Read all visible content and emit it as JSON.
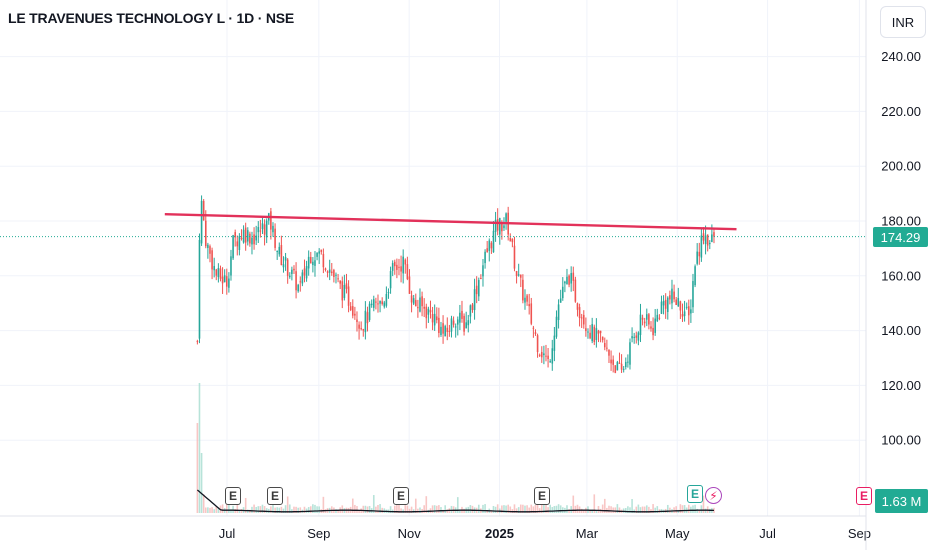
{
  "header": {
    "title": "LE TRAVENUES TECHNOLOGY L · 1D · NSE",
    "currency": "INR"
  },
  "price_label": "174.29",
  "volume_label": "1.63 M",
  "earnings_marker_text": "E",
  "colors": {
    "up": "#26a69a",
    "down": "#ef5350",
    "trendline": "#e2315a",
    "last_price": "#22ab94",
    "grid": "#f0f3fa"
  },
  "chart_data": {
    "type": "candlestick",
    "title": "LE TRAVENUES TECHNOLOGY L · 1D · NSE",
    "y_axis": {
      "ticks": [
        "240.00",
        "220.00",
        "200.00",
        "180.00",
        "160.00",
        "140.00",
        "120.00",
        "100.00"
      ],
      "range": [
        92,
        250
      ],
      "position": "right"
    },
    "x_axis": {
      "ticks": [
        "Jul",
        "Sep",
        "Nov",
        "2025",
        "Mar",
        "May",
        "Jul",
        "Sep"
      ],
      "bold_ticks": [
        "2025"
      ]
    },
    "last_price": 174.29,
    "trendline": {
      "start": [
        "2024-05-20",
        182.5
      ],
      "end": [
        "2025-06-10",
        177.0
      ]
    },
    "price_path": [
      [
        "2024-06-11",
        136
      ],
      [
        "2024-06-12",
        166
      ],
      [
        "2024-06-13",
        190
      ],
      [
        "2024-06-17",
        172
      ],
      [
        "2024-06-24",
        160
      ],
      [
        "2024-07-01",
        158
      ],
      [
        "2024-07-05",
        172
      ],
      [
        "2024-07-12",
        176
      ],
      [
        "2024-07-19",
        174
      ],
      [
        "2024-07-26",
        178
      ],
      [
        "2024-07-30",
        180
      ],
      [
        "2024-08-05",
        168
      ],
      [
        "2024-08-12",
        162
      ],
      [
        "2024-08-19",
        155
      ],
      [
        "2024-08-26",
        168
      ],
      [
        "2024-09-02",
        168
      ],
      [
        "2024-09-09",
        162
      ],
      [
        "2024-09-16",
        155
      ],
      [
        "2024-09-23",
        150
      ],
      [
        "2024-09-30",
        142
      ],
      [
        "2024-10-07",
        148
      ],
      [
        "2024-10-14",
        150
      ],
      [
        "2024-10-21",
        162
      ],
      [
        "2024-10-28",
        165
      ],
      [
        "2024-11-04",
        150
      ],
      [
        "2024-11-11",
        148
      ],
      [
        "2024-11-18",
        145
      ],
      [
        "2024-11-25",
        138
      ],
      [
        "2024-12-02",
        145
      ],
      [
        "2024-12-09",
        142
      ],
      [
        "2024-12-16",
        155
      ],
      [
        "2024-12-23",
        168
      ],
      [
        "2024-12-30",
        178
      ],
      [
        "2025-01-06",
        180
      ],
      [
        "2025-01-13",
        160
      ],
      [
        "2025-01-20",
        148
      ],
      [
        "2025-01-27",
        135
      ],
      [
        "2025-02-03",
        128
      ],
      [
        "2025-02-10",
        150
      ],
      [
        "2025-02-17",
        160
      ],
      [
        "2025-02-24",
        148
      ],
      [
        "2025-03-03",
        140
      ],
      [
        "2025-03-10",
        136
      ],
      [
        "2025-03-17",
        130
      ],
      [
        "2025-03-24",
        124
      ],
      [
        "2025-03-31",
        135
      ],
      [
        "2025-04-07",
        145
      ],
      [
        "2025-04-14",
        140
      ],
      [
        "2025-04-21",
        150
      ],
      [
        "2025-04-28",
        152
      ],
      [
        "2025-05-05",
        148
      ],
      [
        "2025-05-09",
        144
      ],
      [
        "2025-05-13",
        165
      ],
      [
        "2025-05-19",
        176
      ],
      [
        "2025-05-23",
        172
      ],
      [
        "2025-05-27",
        174.29
      ]
    ],
    "earnings_dates": [
      "2024-07-01",
      "2024-07-25",
      "2024-10-31",
      "2025-01-31"
    ],
    "upcoming_earnings": "2025-05-20",
    "volume_label": "1.63 M"
  }
}
